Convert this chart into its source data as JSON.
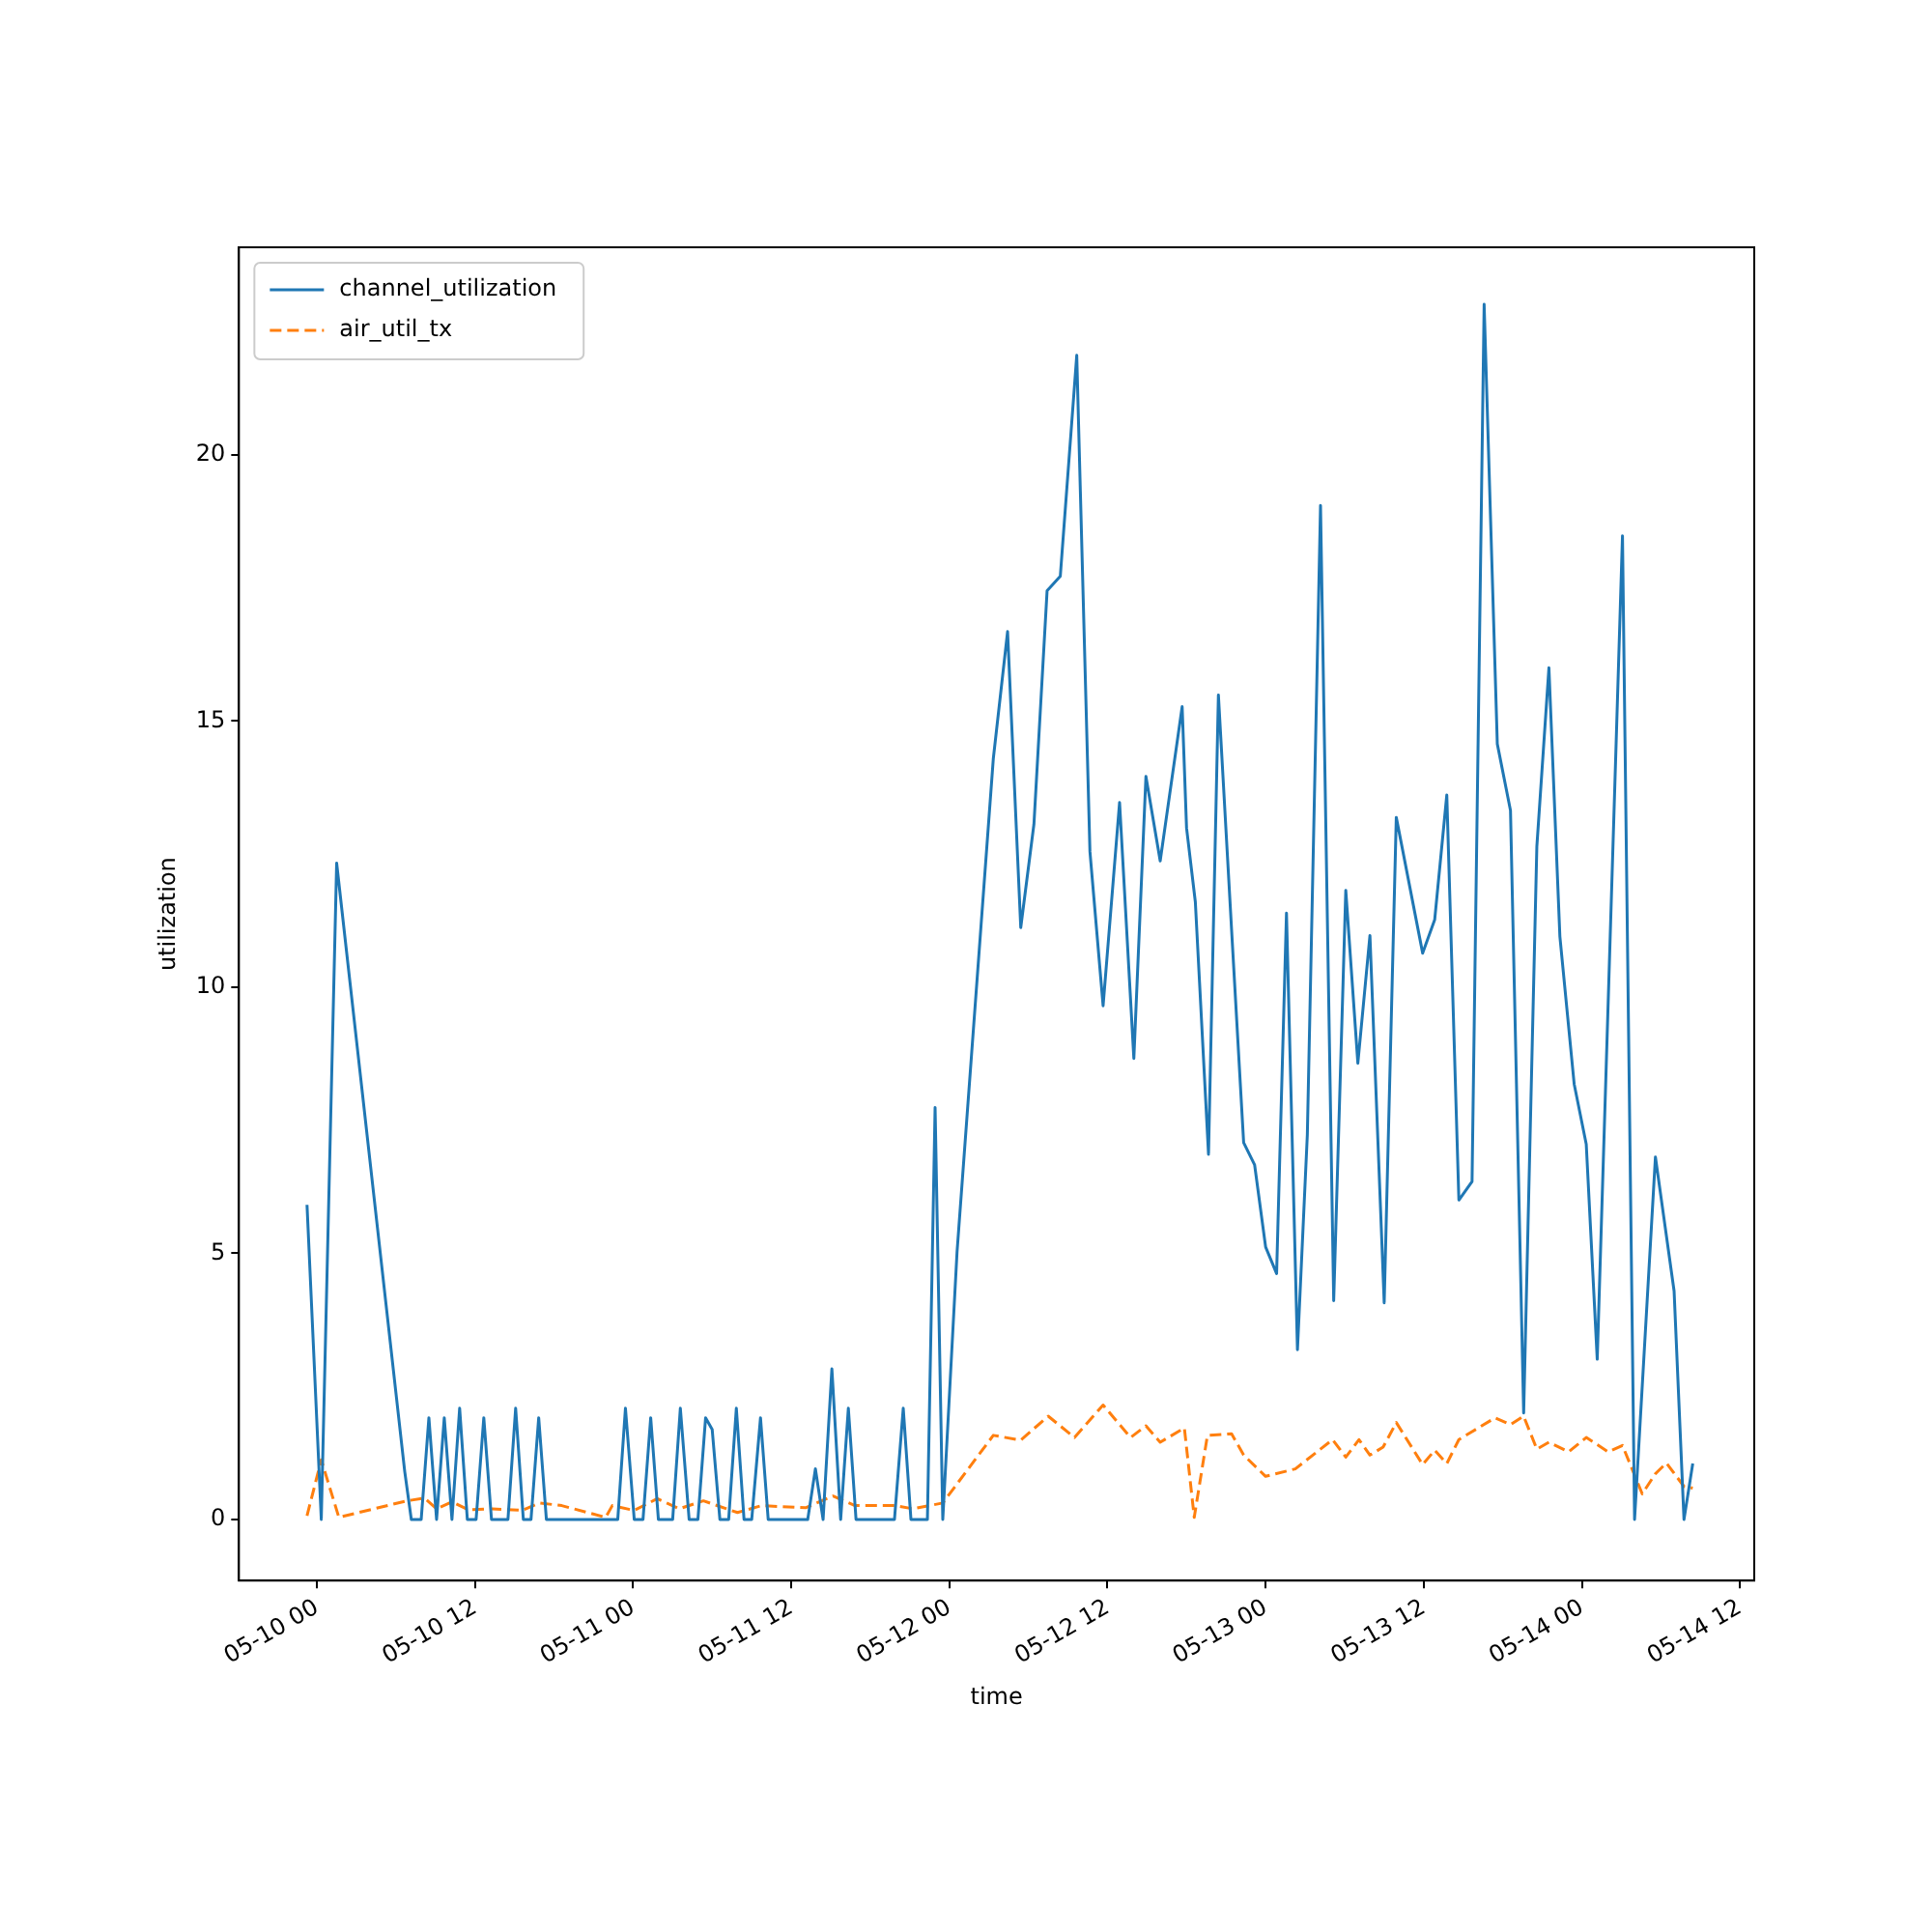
{
  "chart_data": {
    "type": "line",
    "xlabel": "time",
    "ylabel": "utilization",
    "xlim": [
      "--05-09T18:05",
      "--05-14T13:05"
    ],
    "ylim": [
      -1.15,
      23.9
    ],
    "xticks": [
      {
        "value": "--05-10T00:00",
        "label": "05-10 00"
      },
      {
        "value": "--05-10T12:00",
        "label": "05-10 12"
      },
      {
        "value": "--05-11T00:00",
        "label": "05-11 00"
      },
      {
        "value": "--05-11T12:00",
        "label": "05-11 12"
      },
      {
        "value": "--05-12T00:00",
        "label": "05-12 00"
      },
      {
        "value": "--05-12T12:00",
        "label": "05-12 12"
      },
      {
        "value": "--05-13T00:00",
        "label": "05-13 00"
      },
      {
        "value": "--05-13T12:00",
        "label": "05-13 12"
      },
      {
        "value": "--05-14T00:00",
        "label": "05-14 00"
      },
      {
        "value": "--05-14T12:00",
        "label": "05-14 12"
      }
    ],
    "yticks": [
      0,
      5,
      10,
      15,
      20
    ],
    "grid": false,
    "legend": "top left",
    "marker": "none",
    "series": [
      {
        "name": "channel_utilization",
        "color": "#1f77b4",
        "line_style": "solid",
        "x": [
          "--05-09T23:15",
          "--05-10T00:20",
          "--05-10T01:30",
          "--05-10T06:40",
          "--05-10T07:10",
          "--05-10T07:55",
          "--05-10T08:30",
          "--05-10T09:05",
          "--05-10T09:40",
          "--05-10T10:15",
          "--05-10T10:50",
          "--05-10T11:25",
          "--05-10T12:05",
          "--05-10T12:40",
          "--05-10T13:15",
          "--05-10T14:30",
          "--05-10T15:05",
          "--05-10T15:40",
          "--05-10T16:15",
          "--05-10T16:50",
          "--05-10T17:25",
          "--05-10T22:50",
          "--05-10T23:25",
          "--05-11T00:05",
          "--05-11T00:45",
          "--05-11T01:20",
          "--05-11T01:55",
          "--05-11T03:00",
          "--05-11T03:35",
          "--05-11T04:15",
          "--05-11T04:55",
          "--05-11T05:30",
          "--05-11T06:00",
          "--05-11T06:35",
          "--05-11T07:15",
          "--05-11T07:50",
          "--05-11T08:25",
          "--05-11T09:00",
          "--05-11T09:40",
          "--05-11T10:15",
          "--05-11T13:15",
          "--05-11T13:50",
          "--05-11T14:25",
          "--05-11T15:05",
          "--05-11T15:45",
          "--05-11T16:20",
          "--05-11T16:55",
          "--05-11T19:50",
          "--05-11T20:30",
          "--05-11T21:05",
          "--05-11T22:20",
          "--05-11T22:55",
          "--05-11T23:30",
          "--05-12T00:35",
          "--05-12T03:20",
          "--05-12T04:25",
          "--05-12T05:25",
          "--05-12T06:25",
          "--05-12T07:25",
          "--05-12T08:25",
          "--05-12T09:40",
          "--05-12T10:40",
          "--05-12T11:40",
          "--05-12T12:55",
          "--05-12T14:00",
          "--05-12T14:55",
          "--05-12T16:00",
          "--05-12T17:40",
          "--05-12T18:00",
          "--05-12T18:40",
          "--05-12T19:40",
          "--05-12T20:25",
          "--05-12T21:25",
          "--05-12T22:20",
          "--05-12T23:10",
          "--05-13T00:00",
          "--05-13T00:50",
          "--05-13T01:35",
          "--05-13T02:25",
          "--05-13T03:10",
          "--05-13T04:10",
          "--05-13T05:10",
          "--05-13T06:05",
          "--05-13T07:00",
          "--05-13T07:55",
          "--05-13T09:00",
          "--05-13T09:55",
          "--05-13T11:55",
          "--05-13T12:50",
          "--05-13T13:45",
          "--05-13T14:40",
          "--05-13T15:40",
          "--05-13T16:35",
          "--05-13T17:35",
          "--05-13T18:35",
          "--05-13T19:35",
          "--05-13T20:35",
          "--05-13T21:30",
          "--05-13T22:20",
          "--05-13T23:25",
          "--05-14T00:20",
          "--05-14T01:10",
          "--05-14T03:05",
          "--05-14T04:00",
          "--05-14T05:35",
          "--05-14T07:00",
          "--05-14T07:45",
          "--05-14T08:25"
        ],
        "values": [
          5.91,
          0,
          12.33,
          0.9,
          0,
          0,
          1.91,
          0,
          1.91,
          0,
          2.09,
          0,
          0,
          1.91,
          0,
          0,
          2.09,
          0,
          0,
          1.91,
          0,
          0,
          2.09,
          0,
          0,
          1.91,
          0,
          0,
          2.09,
          0,
          0,
          1.91,
          1.69,
          0,
          0,
          2.09,
          0,
          0,
          1.91,
          0,
          0,
          0.95,
          0,
          2.83,
          0,
          2.09,
          0,
          0,
          2.09,
          0,
          0,
          7.74,
          0,
          5.03,
          14.29,
          16.68,
          11.12,
          13.06,
          17.45,
          17.72,
          21.87,
          12.55,
          9.65,
          13.47,
          8.66,
          13.96,
          12.37,
          15.27,
          12.99,
          11.6,
          6.86,
          15.49,
          11.08,
          7.08,
          6.66,
          5.12,
          4.62,
          11.39,
          3.19,
          7.23,
          19.05,
          4.11,
          11.82,
          8.57,
          10.97,
          4.07,
          13.19,
          10.64,
          11.27,
          13.61,
          6.0,
          6.35,
          22.83,
          14.57,
          13.32,
          2.0,
          12.64,
          16.0,
          10.95,
          8.18,
          7.05,
          3.01,
          18.48,
          0,
          6.81,
          4.29,
          0,
          1.05
        ]
      },
      {
        "name": "air_util_tx",
        "color": "#ff7f0e",
        "line_style": "dashed",
        "x": [
          "--05-09T23:15",
          "--05-10T00:20",
          "--05-10T01:40",
          "--05-10T06:50",
          "--05-10T08:10",
          "--05-10T09:05",
          "--05-10T10:15",
          "--05-10T11:30",
          "--05-10T13:20",
          "--05-10T15:35",
          "--05-10T16:55",
          "--05-10T18:35",
          "--05-10T21:55",
          "--05-10T22:25",
          "--05-11T00:05",
          "--05-11T01:50",
          "--05-11T03:30",
          "--05-11T05:20",
          "--05-11T07:55",
          "--05-11T09:45",
          "--05-11T13:05",
          "--05-11T15:10",
          "--05-11T16:50",
          "--05-11T19:50",
          "--05-11T21:15",
          "--05-11T23:30",
          "--05-12T03:20",
          "--05-12T05:25",
          "--05-12T07:30",
          "--05-12T09:30",
          "--05-12T11:40",
          "--05-12T13:45",
          "--05-12T14:55",
          "--05-12T16:00",
          "--05-12T17:50",
          "--05-12T18:35",
          "--05-12T19:35",
          "--05-12T21:25",
          "--05-12T22:20",
          "--05-13T00:00",
          "--05-13T02:15",
          "--05-13T05:05",
          "--05-13T06:05",
          "--05-13T07:05",
          "--05-13T07:55",
          "--05-13T08:55",
          "--05-13T09:55",
          "--05-13T11:55",
          "--05-13T12:50",
          "--05-13T13:45",
          "--05-13T14:40",
          "--05-13T17:25",
          "--05-13T18:35",
          "--05-13T19:35",
          "--05-13T20:35",
          "--05-13T21:30",
          "--05-13T23:00",
          "--05-14T00:20",
          "--05-14T02:00",
          "--05-14T03:05",
          "--05-14T04:35",
          "--05-14T05:35",
          "--05-14T06:25",
          "--05-14T07:45",
          "--05-14T08:25"
        ],
        "values": [
          0.07,
          1.12,
          0.04,
          0.35,
          0.4,
          0.2,
          0.33,
          0.18,
          0.2,
          0.17,
          0.31,
          0.26,
          0.04,
          0.26,
          0.17,
          0.39,
          0.2,
          0.35,
          0.13,
          0.26,
          0.22,
          0.44,
          0.26,
          0.26,
          0.2,
          0.31,
          1.58,
          1.49,
          1.94,
          1.54,
          2.15,
          1.54,
          1.76,
          1.45,
          1.72,
          0.04,
          1.58,
          1.61,
          1.21,
          0.81,
          0.95,
          1.5,
          1.17,
          1.5,
          1.21,
          1.36,
          1.82,
          1.03,
          1.3,
          1.05,
          1.5,
          1.91,
          1.78,
          1.94,
          1.32,
          1.45,
          1.27,
          1.54,
          1.27,
          1.39,
          0.48,
          0.86,
          1.06,
          0.62,
          0.59
        ]
      }
    ]
  }
}
